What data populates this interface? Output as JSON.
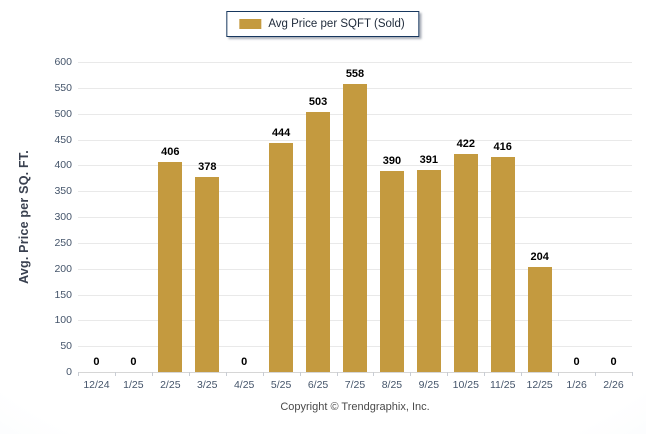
{
  "chart_data": {
    "type": "bar",
    "title": "Avg Price per SQFT (Sold)",
    "categories": [
      "12/24",
      "1/25",
      "2/25",
      "3/25",
      "4/25",
      "5/25",
      "6/25",
      "7/25",
      "8/25",
      "9/25",
      "10/25",
      "11/25",
      "12/25",
      "1/26",
      "2/26"
    ],
    "values": [
      0,
      0,
      406,
      378,
      0,
      444,
      503,
      558,
      390,
      391,
      422,
      416,
      204,
      0,
      0
    ],
    "xlabel": "",
    "ylabel": "Avg. Price per SQ. FT.",
    "ylim": [
      0,
      600
    ],
    "ytick_step": 50,
    "grid": "horizontal",
    "legend_position": "top-center",
    "value_labels": "above-bars"
  },
  "legend": {
    "label": "Avg Price per SQFT (Sold)"
  },
  "footer": {
    "copyright": "Copyright © Trendgraphix, Inc."
  },
  "colors": {
    "bar": "#c49a3f",
    "grid": "#e9e9e9",
    "axis_text": "#44546a",
    "value_label": "#000000",
    "legend_border": "#17375e",
    "footer_text": "#4a4a4a"
  }
}
